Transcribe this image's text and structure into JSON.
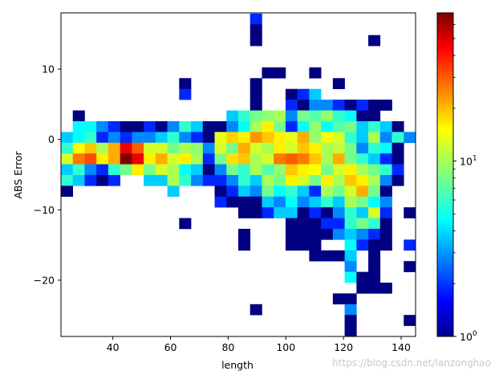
{
  "chart_data": {
    "type": "heatmap",
    "title": "",
    "xlabel": "length",
    "ylabel": "ABS Error",
    "xlim": [
      22,
      145
    ],
    "ylim": [
      -28,
      18
    ],
    "xticks": [
      40,
      60,
      80,
      100,
      120,
      140
    ],
    "yticks": [
      10,
      0,
      -10,
      -20
    ],
    "grid": false,
    "colorscale": "jet",
    "colorbar": {
      "scale": "log",
      "range": [
        1,
        70
      ],
      "tick_labels": [
        "10^0",
        "10^1"
      ],
      "tick_values": [
        1,
        10
      ]
    },
    "bin_edges": {
      "x_start": 22,
      "x_step": 4.1,
      "nx": 30,
      "y_start": -28,
      "y_step": 1.53,
      "ny": 30
    },
    "value_note": "cells given as [x_bin_index, y_bin_index, count]; y index 0 is bottom",
    "cells": [
      [
        16,
        29,
        2
      ],
      [
        16,
        28,
        1
      ],
      [
        16,
        27,
        1
      ],
      [
        26,
        27,
        1
      ],
      [
        17,
        24,
        1
      ],
      [
        18,
        24,
        1
      ],
      [
        21,
        24,
        1
      ],
      [
        10,
        23,
        1
      ],
      [
        16,
        23,
        1
      ],
      [
        23,
        23,
        1
      ],
      [
        10,
        22,
        2
      ],
      [
        16,
        22,
        1
      ],
      [
        19,
        22,
        1
      ],
      [
        20,
        22,
        2
      ],
      [
        21,
        22,
        4
      ],
      [
        16,
        21,
        1
      ],
      [
        19,
        21,
        2
      ],
      [
        20,
        21,
        1
      ],
      [
        21,
        21,
        3
      ],
      [
        22,
        21,
        3
      ],
      [
        23,
        21,
        2
      ],
      [
        24,
        21,
        1
      ],
      [
        25,
        21,
        2
      ],
      [
        26,
        21,
        1
      ],
      [
        27,
        21,
        1
      ],
      [
        1,
        20,
        1
      ],
      [
        14,
        20,
        4
      ],
      [
        15,
        20,
        6
      ],
      [
        16,
        20,
        8
      ],
      [
        17,
        20,
        9
      ],
      [
        18,
        20,
        10
      ],
      [
        19,
        20,
        3
      ],
      [
        20,
        20,
        8
      ],
      [
        21,
        20,
        7
      ],
      [
        22,
        20,
        9
      ],
      [
        23,
        20,
        6
      ],
      [
        24,
        20,
        5
      ],
      [
        25,
        20,
        1
      ],
      [
        26,
        20,
        1
      ],
      [
        1,
        19,
        5
      ],
      [
        2,
        19,
        5
      ],
      [
        3,
        19,
        3
      ],
      [
        4,
        19,
        2
      ],
      [
        5,
        19,
        1
      ],
      [
        6,
        19,
        1
      ],
      [
        7,
        19,
        2
      ],
      [
        8,
        19,
        1
      ],
      [
        9,
        19,
        3
      ],
      [
        10,
        19,
        6
      ],
      [
        11,
        19,
        4
      ],
      [
        12,
        19,
        1
      ],
      [
        13,
        19,
        1
      ],
      [
        14,
        19,
        3
      ],
      [
        15,
        19,
        5
      ],
      [
        16,
        19,
        10
      ],
      [
        17,
        19,
        15
      ],
      [
        18,
        19,
        8
      ],
      [
        19,
        19,
        2
      ],
      [
        20,
        19,
        5
      ],
      [
        21,
        19,
        9
      ],
      [
        22,
        19,
        5
      ],
      [
        23,
        19,
        7
      ],
      [
        24,
        19,
        8
      ],
      [
        25,
        19,
        4
      ],
      [
        26,
        19,
        6
      ],
      [
        27,
        19,
        4
      ],
      [
        28,
        19,
        1
      ],
      [
        0,
        18,
        4
      ],
      [
        1,
        18,
        5
      ],
      [
        2,
        18,
        6
      ],
      [
        3,
        18,
        2
      ],
      [
        4,
        18,
        3
      ],
      [
        5,
        18,
        2
      ],
      [
        6,
        18,
        3
      ],
      [
        7,
        18,
        3
      ],
      [
        8,
        18,
        4
      ],
      [
        9,
        18,
        6
      ],
      [
        10,
        18,
        3
      ],
      [
        11,
        18,
        2
      ],
      [
        12,
        18,
        1
      ],
      [
        13,
        18,
        13
      ],
      [
        14,
        18,
        17
      ],
      [
        15,
        18,
        15
      ],
      [
        16,
        18,
        22
      ],
      [
        17,
        18,
        18
      ],
      [
        18,
        18,
        15
      ],
      [
        19,
        18,
        13
      ],
      [
        20,
        18,
        20
      ],
      [
        21,
        18,
        9
      ],
      [
        22,
        18,
        14
      ],
      [
        23,
        18,
        12
      ],
      [
        24,
        18,
        6
      ],
      [
        25,
        18,
        4
      ],
      [
        26,
        18,
        10
      ],
      [
        27,
        18,
        3
      ],
      [
        28,
        18,
        6
      ],
      [
        29,
        18,
        3
      ],
      [
        0,
        17,
        6
      ],
      [
        1,
        17,
        14
      ],
      [
        2,
        17,
        18
      ],
      [
        3,
        17,
        10
      ],
      [
        4,
        17,
        20
      ],
      [
        5,
        17,
        45
      ],
      [
        6,
        17,
        28
      ],
      [
        7,
        17,
        12
      ],
      [
        8,
        17,
        12
      ],
      [
        9,
        17,
        8
      ],
      [
        10,
        17,
        10
      ],
      [
        11,
        17,
        9
      ],
      [
        12,
        17,
        3
      ],
      [
        13,
        17,
        12
      ],
      [
        14,
        17,
        8
      ],
      [
        15,
        17,
        20
      ],
      [
        16,
        17,
        12
      ],
      [
        17,
        17,
        10
      ],
      [
        18,
        17,
        15
      ],
      [
        19,
        17,
        12
      ],
      [
        20,
        17,
        18
      ],
      [
        21,
        17,
        15
      ],
      [
        22,
        17,
        10
      ],
      [
        23,
        17,
        11
      ],
      [
        24,
        17,
        8
      ],
      [
        25,
        17,
        3
      ],
      [
        26,
        17,
        6
      ],
      [
        27,
        17,
        5
      ],
      [
        28,
        17,
        1
      ],
      [
        0,
        16,
        12
      ],
      [
        1,
        16,
        25
      ],
      [
        2,
        16,
        30
      ],
      [
        3,
        16,
        15
      ],
      [
        4,
        16,
        20
      ],
      [
        5,
        16,
        70
      ],
      [
        6,
        16,
        45
      ],
      [
        7,
        16,
        15
      ],
      [
        8,
        16,
        20
      ],
      [
        9,
        16,
        12
      ],
      [
        10,
        16,
        15
      ],
      [
        11,
        16,
        10
      ],
      [
        12,
        16,
        2
      ],
      [
        13,
        16,
        8
      ],
      [
        14,
        16,
        16
      ],
      [
        15,
        16,
        18
      ],
      [
        16,
        16,
        10
      ],
      [
        17,
        16,
        12
      ],
      [
        18,
        16,
        25
      ],
      [
        19,
        16,
        28
      ],
      [
        20,
        16,
        25
      ],
      [
        21,
        16,
        18
      ],
      [
        22,
        16,
        10
      ],
      [
        23,
        16,
        20
      ],
      [
        24,
        16,
        8
      ],
      [
        25,
        16,
        6
      ],
      [
        26,
        16,
        4
      ],
      [
        27,
        16,
        2
      ],
      [
        28,
        16,
        1
      ],
      [
        0,
        15,
        4
      ],
      [
        1,
        15,
        6
      ],
      [
        2,
        15,
        3
      ],
      [
        3,
        15,
        2
      ],
      [
        4,
        15,
        6
      ],
      [
        5,
        15,
        8
      ],
      [
        6,
        15,
        15
      ],
      [
        7,
        15,
        8
      ],
      [
        8,
        15,
        12
      ],
      [
        9,
        15,
        10
      ],
      [
        10,
        15,
        5
      ],
      [
        11,
        15,
        4
      ],
      [
        12,
        15,
        1
      ],
      [
        13,
        15,
        3
      ],
      [
        14,
        15,
        8
      ],
      [
        15,
        15,
        6
      ],
      [
        16,
        15,
        10
      ],
      [
        17,
        15,
        7
      ],
      [
        18,
        15,
        9
      ],
      [
        19,
        15,
        18
      ],
      [
        20,
        15,
        15
      ],
      [
        21,
        15,
        14
      ],
      [
        22,
        15,
        8
      ],
      [
        23,
        15,
        12
      ],
      [
        24,
        15,
        15
      ],
      [
        25,
        15,
        10
      ],
      [
        26,
        15,
        8
      ],
      [
        27,
        15,
        6
      ],
      [
        28,
        15,
        2
      ],
      [
        0,
        14,
        6
      ],
      [
        1,
        14,
        4
      ],
      [
        2,
        14,
        2
      ],
      [
        3,
        14,
        1
      ],
      [
        4,
        14,
        2
      ],
      [
        7,
        14,
        4
      ],
      [
        8,
        14,
        4
      ],
      [
        9,
        14,
        10
      ],
      [
        10,
        14,
        6
      ],
      [
        11,
        14,
        3
      ],
      [
        12,
        14,
        2
      ],
      [
        13,
        14,
        2
      ],
      [
        14,
        14,
        3
      ],
      [
        15,
        14,
        6
      ],
      [
        16,
        14,
        4
      ],
      [
        17,
        14,
        10
      ],
      [
        18,
        14,
        8
      ],
      [
        19,
        14,
        15
      ],
      [
        20,
        14,
        12
      ],
      [
        21,
        14,
        8
      ],
      [
        22,
        14,
        15
      ],
      [
        23,
        14,
        10
      ],
      [
        24,
        14,
        18
      ],
      [
        25,
        14,
        15
      ],
      [
        26,
        14,
        10
      ],
      [
        27,
        14,
        3
      ],
      [
        28,
        14,
        1
      ],
      [
        0,
        13,
        1
      ],
      [
        9,
        13,
        4
      ],
      [
        13,
        13,
        1
      ],
      [
        14,
        13,
        2
      ],
      [
        15,
        13,
        4
      ],
      [
        16,
        13,
        3
      ],
      [
        17,
        13,
        8
      ],
      [
        18,
        13,
        5
      ],
      [
        19,
        13,
        6
      ],
      [
        20,
        13,
        4
      ],
      [
        21,
        13,
        2
      ],
      [
        22,
        13,
        10
      ],
      [
        23,
        13,
        8
      ],
      [
        24,
        13,
        12
      ],
      [
        25,
        13,
        20
      ],
      [
        26,
        13,
        8
      ],
      [
        27,
        13,
        1
      ],
      [
        13,
        12,
        2
      ],
      [
        14,
        12,
        1
      ],
      [
        15,
        12,
        1
      ],
      [
        16,
        12,
        1
      ],
      [
        17,
        12,
        4
      ],
      [
        18,
        12,
        3
      ],
      [
        19,
        12,
        5
      ],
      [
        20,
        12,
        3
      ],
      [
        21,
        12,
        4
      ],
      [
        22,
        12,
        6
      ],
      [
        23,
        12,
        4
      ],
      [
        24,
        12,
        10
      ],
      [
        25,
        12,
        8
      ],
      [
        26,
        12,
        5
      ],
      [
        27,
        12,
        3
      ],
      [
        15,
        11,
        1
      ],
      [
        16,
        11,
        1
      ],
      [
        17,
        11,
        2
      ],
      [
        18,
        11,
        4
      ],
      [
        19,
        11,
        4
      ],
      [
        20,
        11,
        1
      ],
      [
        21,
        11,
        2
      ],
      [
        22,
        11,
        1
      ],
      [
        23,
        11,
        3
      ],
      [
        24,
        11,
        6
      ],
      [
        25,
        11,
        4
      ],
      [
        26,
        11,
        12
      ],
      [
        27,
        11,
        2
      ],
      [
        29,
        11,
        1
      ],
      [
        10,
        10,
        1
      ],
      [
        19,
        10,
        1
      ],
      [
        20,
        10,
        1
      ],
      [
        21,
        10,
        1
      ],
      [
        22,
        10,
        2
      ],
      [
        23,
        10,
        2
      ],
      [
        24,
        10,
        6
      ],
      [
        25,
        10,
        8
      ],
      [
        26,
        10,
        6
      ],
      [
        27,
        10,
        1
      ],
      [
        15,
        9,
        1
      ],
      [
        19,
        9,
        1
      ],
      [
        20,
        9,
        1
      ],
      [
        21,
        9,
        1
      ],
      [
        22,
        9,
        1
      ],
      [
        23,
        9,
        3
      ],
      [
        24,
        9,
        4
      ],
      [
        25,
        9,
        3
      ],
      [
        26,
        9,
        2
      ],
      [
        27,
        9,
        1
      ],
      [
        15,
        8,
        1
      ],
      [
        19,
        8,
        1
      ],
      [
        20,
        8,
        1
      ],
      [
        21,
        8,
        1
      ],
      [
        24,
        8,
        5
      ],
      [
        25,
        8,
        2
      ],
      [
        26,
        8,
        1
      ],
      [
        27,
        8,
        1
      ],
      [
        29,
        8,
        2
      ],
      [
        21,
        7,
        1
      ],
      [
        22,
        7,
        1
      ],
      [
        23,
        7,
        1
      ],
      [
        24,
        7,
        4
      ],
      [
        26,
        7,
        1
      ],
      [
        24,
        6,
        3
      ],
      [
        26,
        6,
        1
      ],
      [
        29,
        6,
        1
      ],
      [
        24,
        5,
        5
      ],
      [
        25,
        5,
        1
      ],
      [
        26,
        5,
        1
      ],
      [
        25,
        4,
        1
      ],
      [
        26,
        4,
        1
      ],
      [
        27,
        4,
        1
      ],
      [
        23,
        3,
        1
      ],
      [
        24,
        3,
        1
      ],
      [
        16,
        2,
        1
      ],
      [
        24,
        2,
        3
      ],
      [
        24,
        1,
        1
      ],
      [
        29,
        1,
        1
      ],
      [
        24,
        0,
        1
      ]
    ]
  },
  "watermark": "https://blog.csdn.net/lanzonghao"
}
